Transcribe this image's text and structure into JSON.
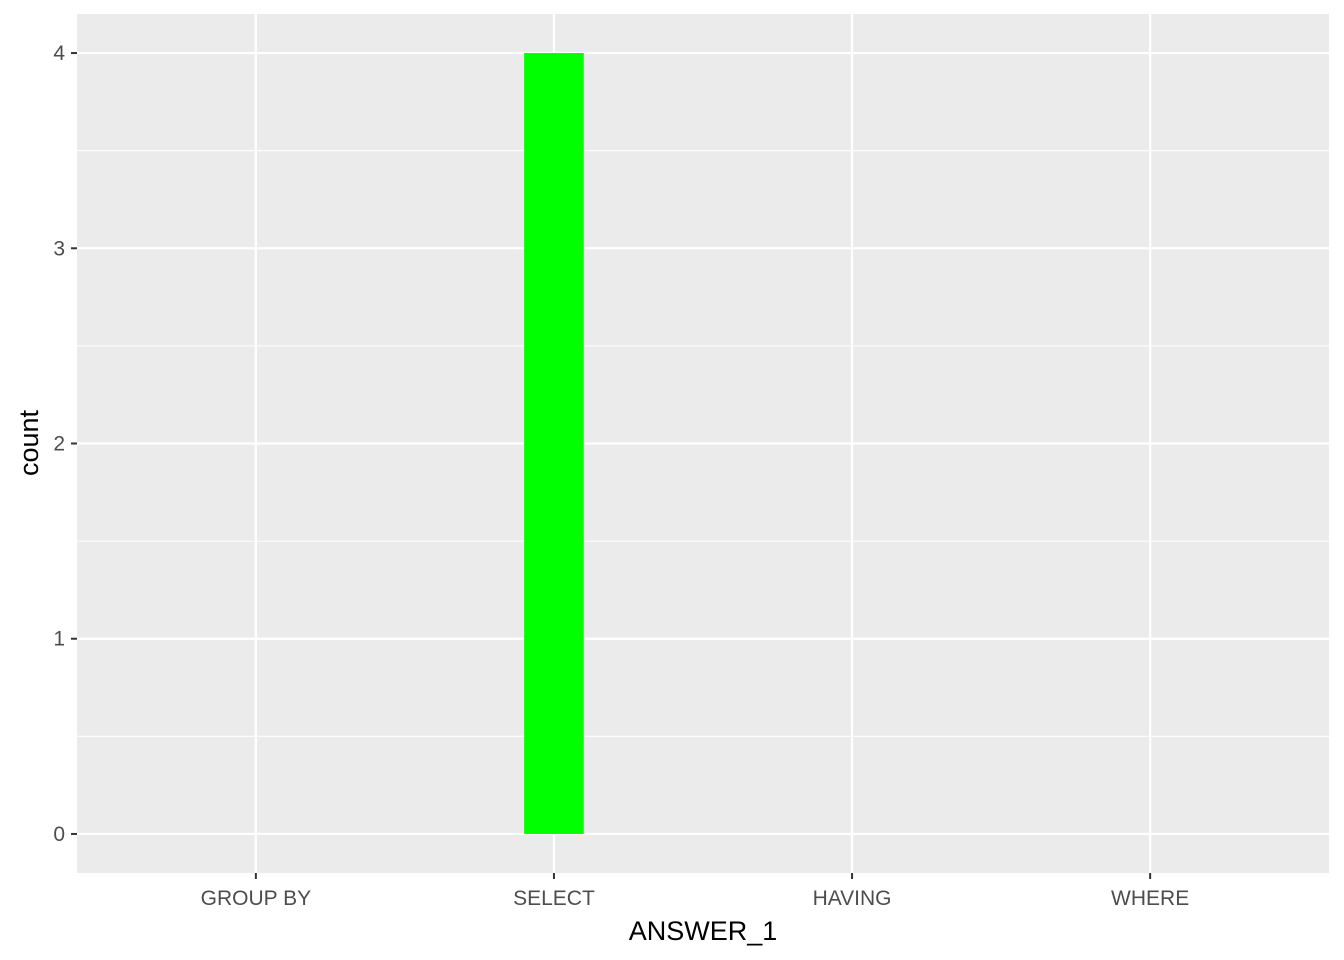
{
  "chart_data": {
    "type": "bar",
    "categories": [
      "GROUP BY",
      "SELECT",
      "HAVING",
      "WHERE"
    ],
    "values": [
      0,
      4,
      0,
      0
    ],
    "xlabel": "ANSWER_1",
    "ylabel": "count",
    "ylim": [
      -0.2,
      4.2
    ],
    "yticks": [
      0,
      1,
      2,
      3,
      4
    ],
    "grid": true,
    "colors": {
      "panel": "#ebebeb",
      "grid": "#ffffff",
      "bar": "#00ff00",
      "tick_text": "#4d4d4d",
      "axis_title": "#000000",
      "tick_mark": "#333333"
    }
  }
}
